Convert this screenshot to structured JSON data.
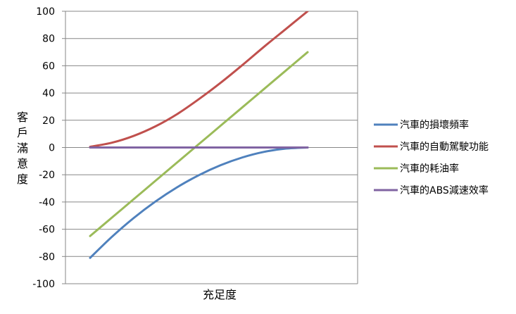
{
  "chart_data": {
    "type": "line",
    "title": "",
    "xlabel": "充足度",
    "ylabel": "客戶滿意度",
    "ylim": [
      -100,
      100
    ],
    "yticks": [
      100,
      80,
      60,
      40,
      20,
      0,
      -20,
      -40,
      -60,
      -80,
      -100
    ],
    "grid": true,
    "legend_position": "right",
    "x": [
      0,
      0.1,
      0.2,
      0.3,
      0.4,
      0.5,
      0.6,
      0.7,
      0.8,
      0.9,
      1.0
    ],
    "series": [
      {
        "name": "汽車的損壞頻率",
        "color": "#4F81BD",
        "values": [
          -81,
          -65.6,
          -51.8,
          -39.7,
          -29.2,
          -20.3,
          -13,
          -7.3,
          -3.2,
          -0.8,
          0
        ]
      },
      {
        "name": "汽車的自動駕駛功能",
        "color": "#C0504D",
        "values": [
          0.5,
          3.5,
          8.5,
          15.5,
          24.5,
          35.5,
          47.5,
          60.5,
          74,
          87,
          100
        ]
      },
      {
        "name": "汽車的耗油率",
        "color": "#9BBB59",
        "values": [
          -65,
          -51.5,
          -38,
          -24.5,
          -11,
          2.5,
          16,
          29.5,
          43,
          56.5,
          70
        ]
      },
      {
        "name": "汽車的ABS減速效率",
        "color": "#8064A2",
        "values": [
          0,
          0,
          0,
          0,
          0,
          0,
          0,
          0,
          0,
          0,
          0
        ]
      }
    ]
  }
}
